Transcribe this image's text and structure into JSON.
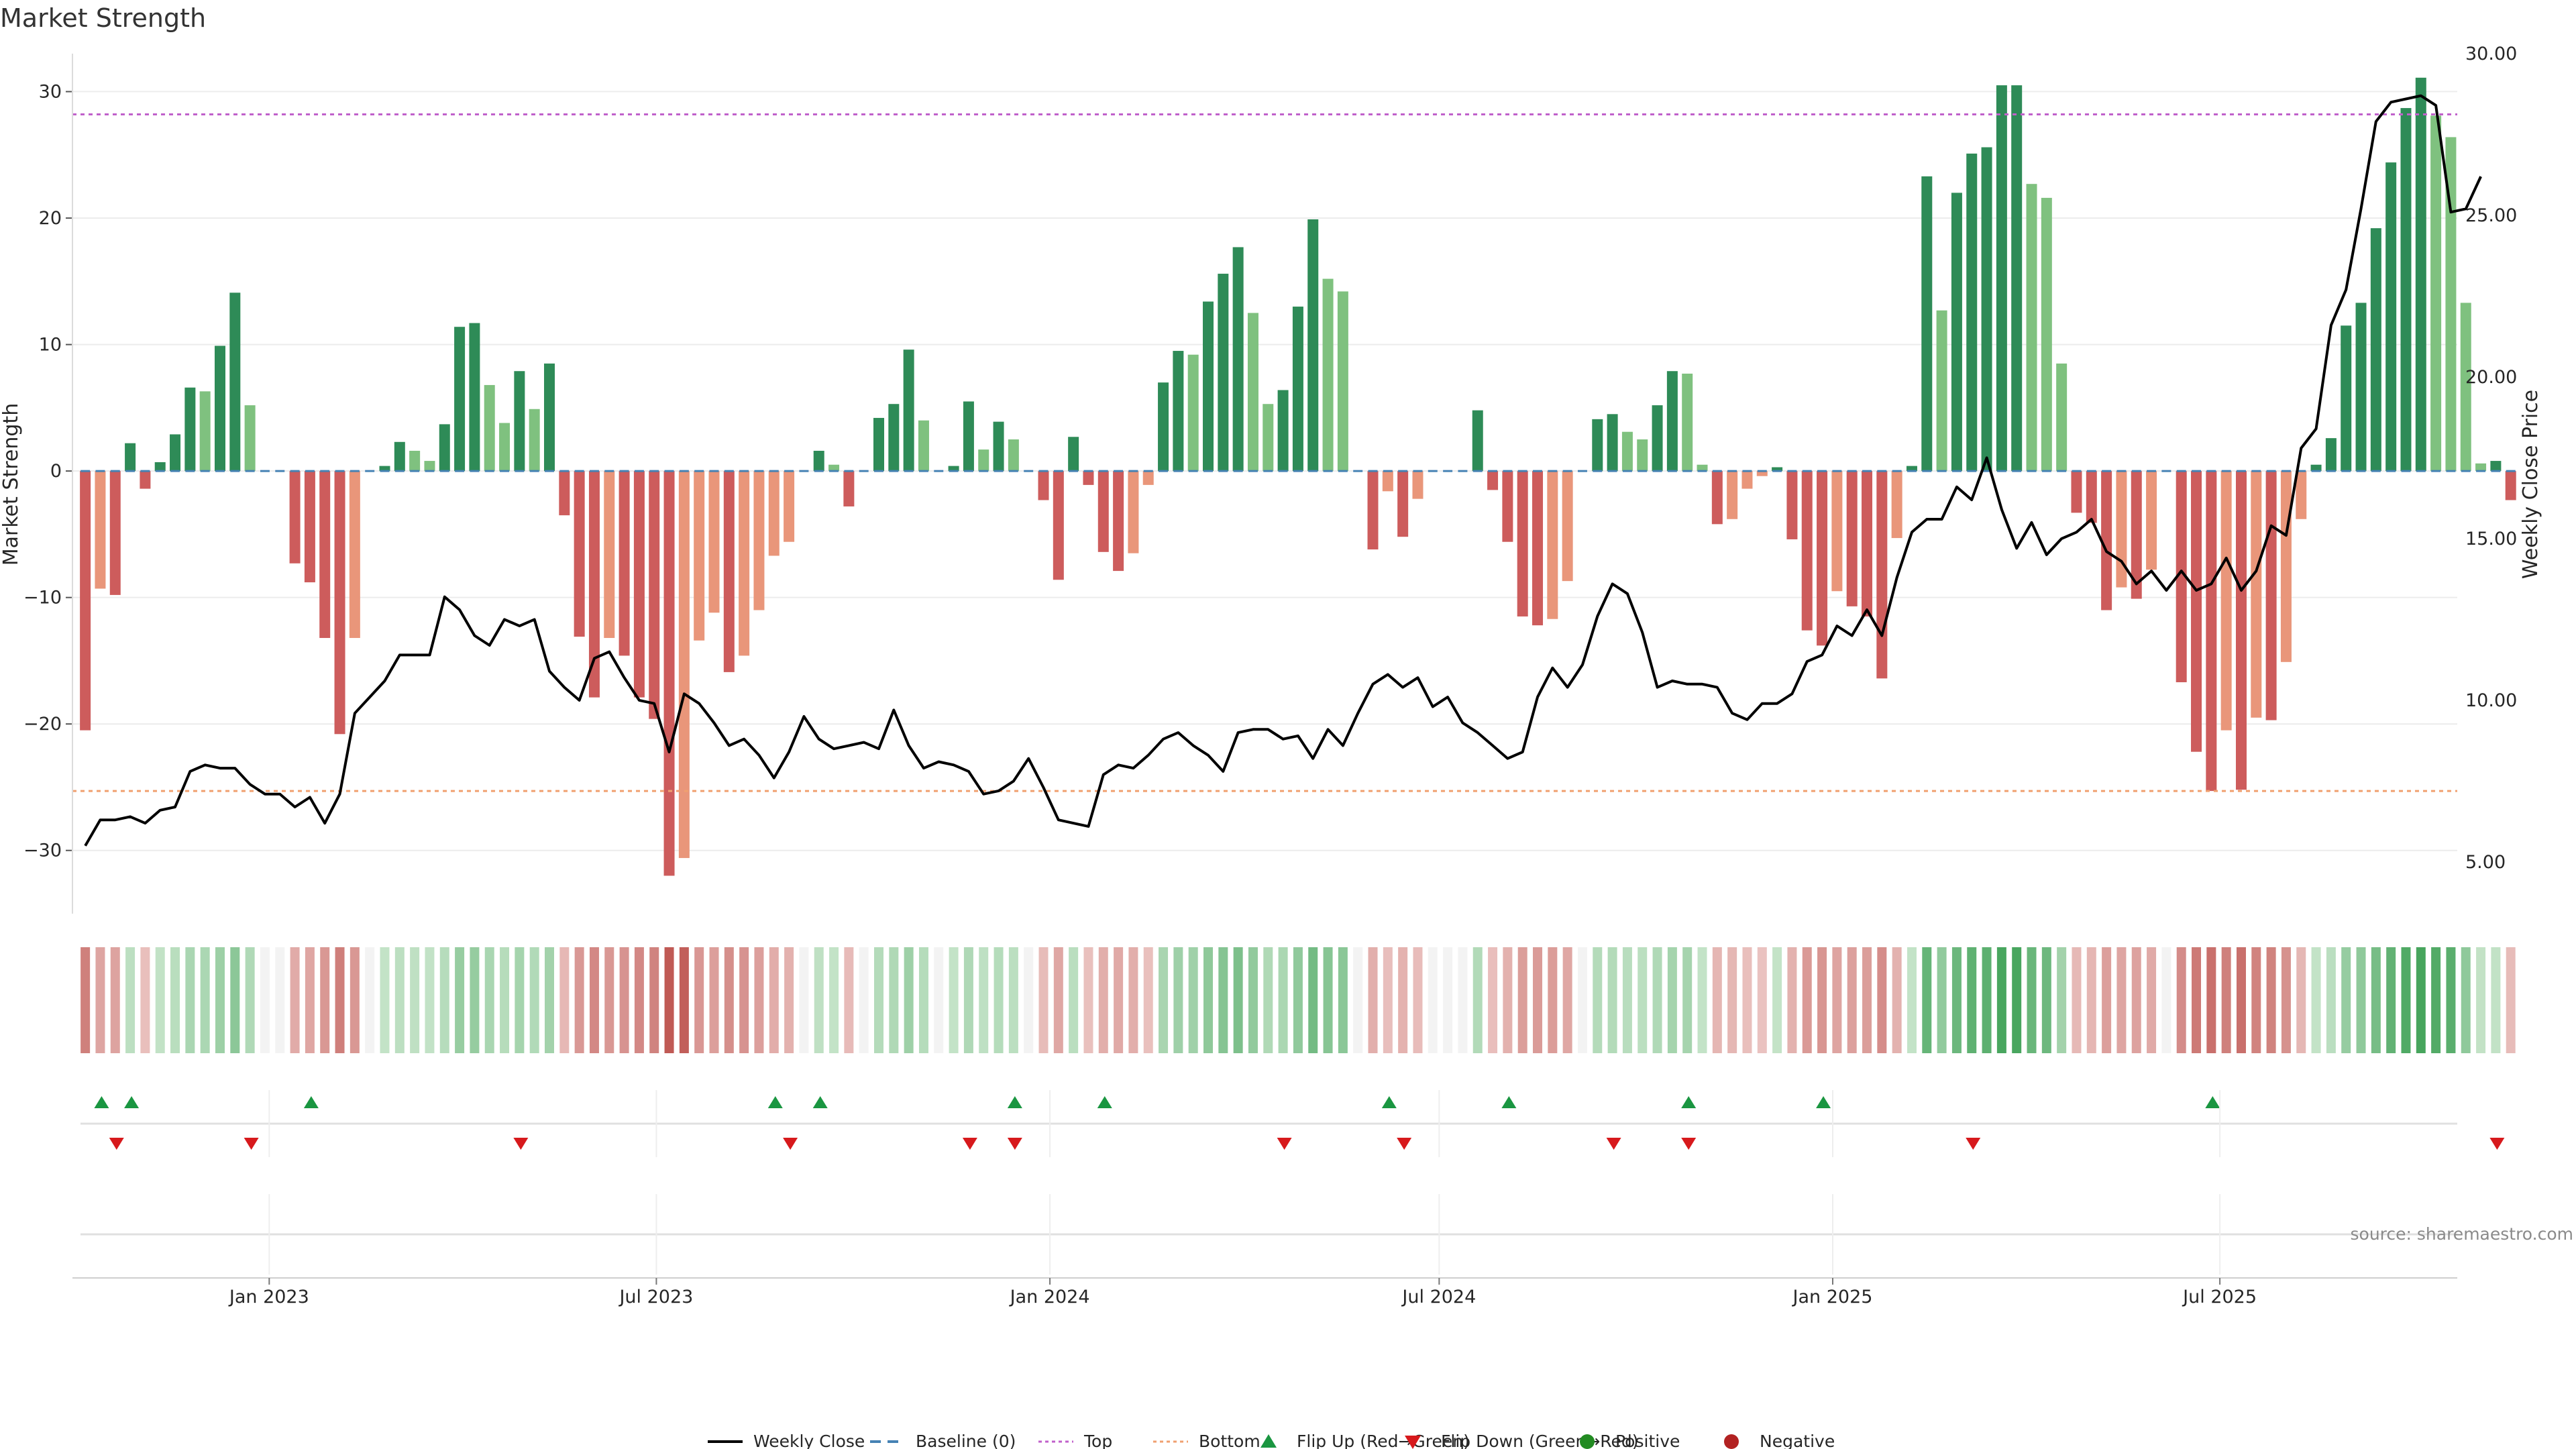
{
  "chart_data": {
    "type": "bar",
    "title": "Market Strength",
    "ylabel": "Market Strength",
    "y2label": "Weekly Close Price",
    "ylim": [
      -35,
      33
    ],
    "y2lim": [
      3.4,
      30.0
    ],
    "yticks": [
      -30,
      -20,
      -10,
      0,
      10,
      20,
      30
    ],
    "y2ticks": [
      "5.00",
      "10.00",
      "15.00",
      "20.00",
      "25.00",
      "30.00"
    ],
    "xdate_range": [
      "2022-10-01",
      "2025-10-20"
    ],
    "xticks": [
      {
        "date": "2023-01-01",
        "label": "Jan 2023"
      },
      {
        "date": "2023-07-01",
        "label": "Jul 2023"
      },
      {
        "date": "2024-01-01",
        "label": "Jan 2024"
      },
      {
        "date": "2024-07-01",
        "label": "Jul 2024"
      },
      {
        "date": "2025-01-01",
        "label": "Jan 2025"
      },
      {
        "date": "2025-07-01",
        "label": "Jul 2025"
      }
    ],
    "first_week": "2022-10-07",
    "top_level": 28.2,
    "bottom_level": -25.3,
    "strength": [
      -20.5,
      -9.3,
      -9.8,
      2.2,
      -1.4,
      0.7,
      2.9,
      6.6,
      6.3,
      9.9,
      14.1,
      5.2,
      0,
      0,
      -7.3,
      -8.8,
      -13.2,
      -20.8,
      -13.2,
      0,
      0.4,
      2.3,
      1.6,
      0.8,
      3.7,
      11.4,
      11.7,
      6.8,
      3.8,
      7.9,
      4.9,
      8.5,
      -3.5,
      -13.1,
      -17.9,
      -13.2,
      -14.6,
      -17.9,
      -19.6,
      -32,
      -30.6,
      -13.4,
      -11.2,
      -15.9,
      -14.6,
      -11,
      -6.7,
      -5.6,
      0,
      1.6,
      0.5,
      -2.8,
      0,
      4.2,
      5.3,
      9.6,
      4,
      0,
      0.4,
      5.5,
      1.7,
      3.9,
      2.5,
      0,
      -2.3,
      -8.6,
      2.7,
      -1.1,
      -6.4,
      -7.9,
      -6.5,
      -1.1,
      7,
      9.5,
      9.2,
      13.4,
      15.6,
      17.7,
      12.5,
      5.3,
      6.4,
      13,
      19.9,
      15.2,
      14.2,
      0,
      -6.2,
      -1.6,
      -5.2,
      -2.2,
      0,
      0,
      0,
      4.8,
      -1.5,
      -5.6,
      -11.5,
      -12.2,
      -11.7,
      -8.7,
      0,
      4.1,
      4.5,
      3.1,
      2.5,
      5.2,
      7.9,
      7.7,
      0.5,
      -4.2,
      -3.8,
      -1.4,
      -0.4,
      0.3,
      -5.4,
      -12.6,
      -13.8,
      -9.5,
      -10.7,
      -11.5,
      -16.4,
      -5.3,
      0.4,
      23.3,
      12.7,
      22,
      25.1,
      25.6,
      30.5,
      30.5,
      22.7,
      21.6,
      8.5,
      -3.3,
      -4.1,
      -11,
      -9.2,
      -10.1,
      -7.8,
      0,
      -16.7,
      -22.2,
      -25.3,
      -20.5,
      -25.2,
      -19.5,
      -19.7,
      -15.1,
      -3.8,
      0.5,
      2.6,
      11.5,
      13.3,
      19.2,
      24.4,
      28.7,
      31.1,
      28.1,
      26.4,
      13.3,
      0.6,
      0.8,
      -2.3
    ],
    "close": [
      5.5,
      6.3,
      6.3,
      6.4,
      6.2,
      6.6,
      6.7,
      7.8,
      8.0,
      7.9,
      7.9,
      7.4,
      7.1,
      7.1,
      6.7,
      7.0,
      6.2,
      7.1,
      9.6,
      10.1,
      10.6,
      11.4,
      11.4,
      11.4,
      13.2,
      12.8,
      12.0,
      11.7,
      12.5,
      12.3,
      12.5,
      10.9,
      10.4,
      10.0,
      11.3,
      11.5,
      10.7,
      10.0,
      9.9,
      8.4,
      10.2,
      9.9,
      9.3,
      8.6,
      8.8,
      8.3,
      7.6,
      8.4,
      9.5,
      8.8,
      8.5,
      8.6,
      8.7,
      8.5,
      9.7,
      8.6,
      7.9,
      8.1,
      8.0,
      7.8,
      7.1,
      7.2,
      7.5,
      8.2,
      7.3,
      6.3,
      6.2,
      6.1,
      7.7,
      8.0,
      7.9,
      8.3,
      8.8,
      9.0,
      8.6,
      8.3,
      7.8,
      9.0,
      9.1,
      9.1,
      8.8,
      8.9,
      8.2,
      9.1,
      8.6,
      9.6,
      10.5,
      10.8,
      10.4,
      10.7,
      9.8,
      10.1,
      9.3,
      9.0,
      8.6,
      8.2,
      8.4,
      10.1,
      11.0,
      10.4,
      11.1,
      12.6,
      13.6,
      13.3,
      12.1,
      10.4,
      10.6,
      10.5,
      10.5,
      10.4,
      9.6,
      9.4,
      9.9,
      9.9,
      10.2,
      11.2,
      11.4,
      12.3,
      12.0,
      12.8,
      12.0,
      13.8,
      15.2,
      15.6,
      15.6,
      16.6,
      16.2,
      17.5,
      15.9,
      14.7,
      15.5,
      14.5,
      15.0,
      15.2,
      15.6,
      14.6,
      14.3,
      13.6,
      14.0,
      13.4,
      14.0,
      13.4,
      13.6,
      14.4,
      13.4,
      14.0,
      15.4,
      15.1,
      17.8,
      18.4,
      21.6,
      22.7,
      25.2,
      27.9,
      28.5,
      28.6,
      28.7,
      28.4,
      25.1,
      25.2,
      26.2
    ],
    "flip_up_weeks": [
      1,
      3,
      15,
      46,
      49,
      62,
      68,
      87,
      95,
      107,
      116,
      142
    ],
    "flip_down_weeks": [
      2,
      11,
      29,
      47,
      59,
      62,
      80,
      88,
      102,
      107,
      126,
      161
    ],
    "legend": [
      "Weekly Close",
      "Baseline (0)",
      "Top",
      "Bottom",
      "Flip Up (Red→Green)",
      "Flip Down (Green→Red)",
      "Positive",
      "Negative"
    ],
    "source": "source: sharemaestro.com",
    "colors": {
      "pos_strong": "#2e8b57",
      "pos_light": "#7fc17f",
      "neg_strong": "#cd5c5c",
      "neg_light": "#e9967a",
      "top": "#c061cb",
      "bottom": "#f0a070",
      "baseline": "#4682b4",
      "flip_up": "#1a9641",
      "flip_down": "#d7191c",
      "positive_dot": "#228b22",
      "negative_dot": "#b22222",
      "close": "#000000"
    }
  }
}
